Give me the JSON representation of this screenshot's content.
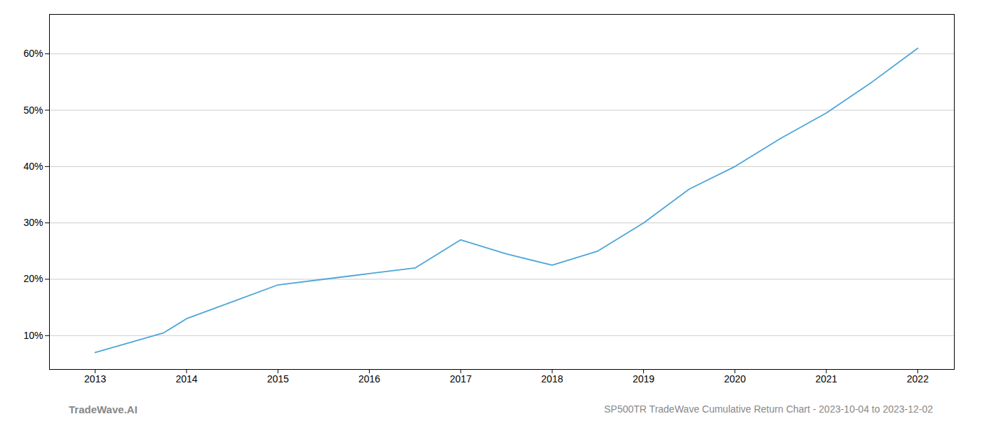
{
  "chart_data": {
    "type": "line",
    "x": [
      2013,
      2013.75,
      2014,
      2014.5,
      2015,
      2015.5,
      2016,
      2016.5,
      2017,
      2017.5,
      2018,
      2018.5,
      2019,
      2019.5,
      2020,
      2020.5,
      2021,
      2021.5,
      2022
    ],
    "values": [
      7.0,
      10.5,
      13.0,
      16.0,
      19.0,
      20.0,
      21.0,
      22.0,
      27.0,
      24.5,
      22.5,
      25.0,
      30.0,
      36.0,
      40.0,
      45.0,
      49.5,
      55.0,
      61.0
    ],
    "color": "#4da6d8",
    "xlim": [
      2012.5,
      2022.4
    ],
    "xticks": [
      2013,
      2014,
      2015,
      2016,
      2017,
      2018,
      2019,
      2020,
      2021,
      2022
    ],
    "ylim": [
      4,
      67
    ],
    "yticks": [
      {
        "value": 10,
        "label": "10%"
      },
      {
        "value": 20,
        "label": "20%"
      },
      {
        "value": 30,
        "label": "30%"
      },
      {
        "value": 40,
        "label": "40%"
      },
      {
        "value": 50,
        "label": "50%"
      },
      {
        "value": 60,
        "label": "60%"
      }
    ],
    "grid": "y",
    "annotations": [
      "TradeWave.AI",
      "SP500TR TradeWave Cumulative Return Chart - 2023-10-04 to 2023-12-02"
    ]
  }
}
